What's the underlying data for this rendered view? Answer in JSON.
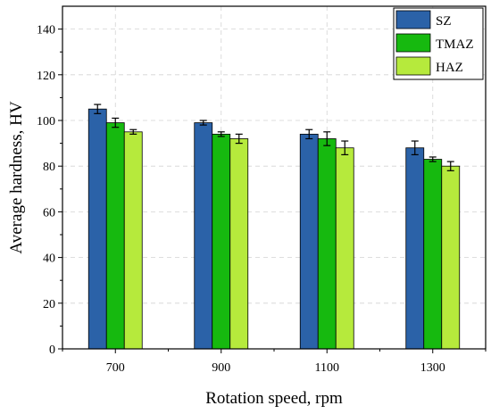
{
  "chart_data": {
    "type": "bar",
    "xlabel": "Rotation speed, rpm",
    "ylabel": "Average hardness, HV",
    "categories": [
      "700",
      "900",
      "1100",
      "1300"
    ],
    "ylim": [
      0,
      150
    ],
    "yticks": [
      0,
      20,
      40,
      60,
      80,
      100,
      120,
      140
    ],
    "grid": true,
    "legend_position": "top-right",
    "series": [
      {
        "name": "SZ",
        "color": "#2b62a8",
        "values": [
          105,
          99,
          94,
          88
        ],
        "errors": [
          2,
          1,
          2,
          3
        ]
      },
      {
        "name": "TMAZ",
        "color": "#16b90f",
        "values": [
          99,
          94,
          92,
          83
        ],
        "errors": [
          2,
          1,
          3,
          1
        ]
      },
      {
        "name": "HAZ",
        "color": "#b6ea3c",
        "values": [
          95,
          92,
          88,
          80
        ],
        "errors": [
          1,
          2,
          3,
          2
        ]
      }
    ]
  }
}
